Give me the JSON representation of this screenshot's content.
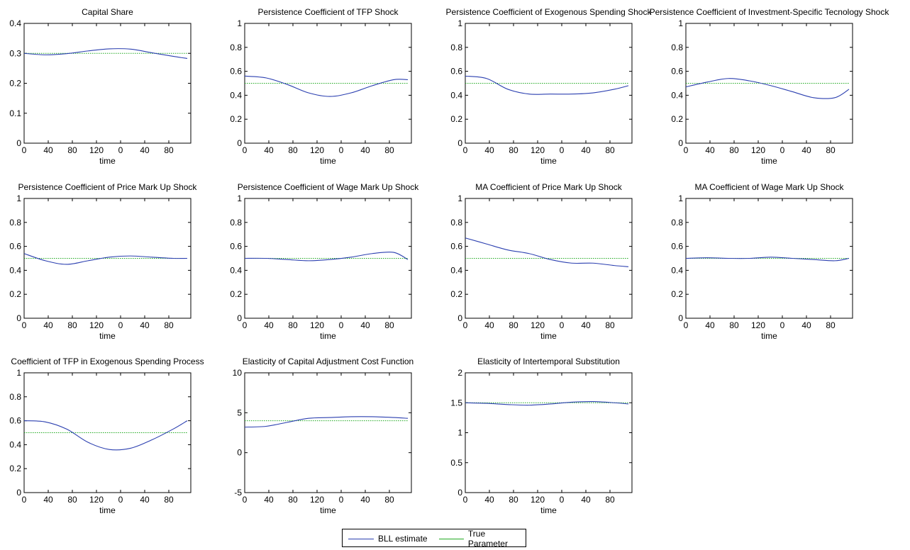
{
  "figure": {
    "legend": [
      {
        "label": "BLL estimate",
        "color": "#2b3fb0"
      },
      {
        "label": "True Parameter",
        "color": "#22aa22"
      }
    ]
  },
  "chart_data": [
    {
      "type": "line",
      "title": "Capital Share",
      "xlabel": "time",
      "ylim": [
        0,
        0.4
      ],
      "yticks": [
        "0",
        "0.1",
        "0.2",
        "0.3",
        "0.4"
      ],
      "xticks": [
        "0",
        "40",
        "80",
        "120",
        "0",
        "40",
        "80"
      ],
      "grid": false,
      "true_value": 0.3,
      "series": [
        {
          "name": "BLL estimate",
          "x": [
            0,
            30,
            60,
            90,
            120,
            150,
            180,
            210,
            230
          ],
          "values": [
            0.3,
            0.295,
            0.299,
            0.308,
            0.315,
            0.314,
            0.302,
            0.29,
            0.283
          ]
        },
        {
          "name": "True Parameter",
          "x": [
            0,
            230
          ],
          "values": [
            0.3,
            0.3
          ]
        }
      ]
    },
    {
      "type": "line",
      "title": "Persistence Coefficient of TFP Shock",
      "xlabel": "time",
      "ylim": [
        0,
        1
      ],
      "yticks": [
        "0",
        "0.2",
        "0.4",
        "0.6",
        "0.8",
        "1"
      ],
      "xticks": [
        "0",
        "40",
        "80",
        "120",
        "0",
        "40",
        "80"
      ],
      "grid": false,
      "true_value": 0.5,
      "series": [
        {
          "name": "BLL estimate",
          "x": [
            0,
            30,
            60,
            90,
            120,
            150,
            180,
            210,
            230
          ],
          "values": [
            0.56,
            0.545,
            0.49,
            0.42,
            0.39,
            0.42,
            0.48,
            0.53,
            0.53
          ]
        },
        {
          "name": "True Parameter",
          "x": [
            0,
            230
          ],
          "values": [
            0.5,
            0.5
          ]
        }
      ]
    },
    {
      "type": "line",
      "title": "Persistence Coefficient of Exogenous Spending Shock",
      "xlabel": "time",
      "ylim": [
        0,
        1
      ],
      "yticks": [
        "0",
        "0.2",
        "0.4",
        "0.6",
        "0.8",
        "1"
      ],
      "xticks": [
        "0",
        "40",
        "80",
        "120",
        "0",
        "40",
        "80"
      ],
      "grid": false,
      "true_value": 0.5,
      "series": [
        {
          "name": "BLL estimate",
          "x": [
            0,
            30,
            60,
            90,
            120,
            150,
            180,
            210,
            230
          ],
          "values": [
            0.56,
            0.54,
            0.45,
            0.41,
            0.41,
            0.41,
            0.42,
            0.45,
            0.48
          ]
        },
        {
          "name": "True Parameter",
          "x": [
            0,
            230
          ],
          "values": [
            0.5,
            0.5
          ]
        }
      ]
    },
    {
      "type": "line",
      "title": "Persistence Coefficient of Investment-Specific Tecnology Shock",
      "xlabel": "time",
      "ylim": [
        0,
        1
      ],
      "yticks": [
        "0",
        "0.2",
        "0.4",
        "0.6",
        "0.8",
        "1"
      ],
      "xticks": [
        "0",
        "40",
        "80",
        "120",
        "0",
        "40",
        "80"
      ],
      "grid": false,
      "true_value": 0.5,
      "series": [
        {
          "name": "BLL estimate",
          "x": [
            0,
            30,
            60,
            90,
            120,
            150,
            180,
            210,
            230
          ],
          "values": [
            0.47,
            0.51,
            0.54,
            0.52,
            0.48,
            0.43,
            0.38,
            0.38,
            0.45
          ]
        },
        {
          "name": "True Parameter",
          "x": [
            0,
            230
          ],
          "values": [
            0.5,
            0.5
          ]
        }
      ]
    },
    {
      "type": "line",
      "title": "Persistence Coefficient of Price Mark Up Shock",
      "xlabel": "time",
      "ylim": [
        0,
        1
      ],
      "yticks": [
        "0",
        "0.2",
        "0.4",
        "0.6",
        "0.8",
        "1"
      ],
      "xticks": [
        "0",
        "40",
        "80",
        "120",
        "0",
        "40",
        "80"
      ],
      "grid": false,
      "true_value": 0.5,
      "series": [
        {
          "name": "BLL estimate",
          "x": [
            0,
            30,
            60,
            90,
            120,
            150,
            180,
            210,
            230
          ],
          "values": [
            0.54,
            0.48,
            0.45,
            0.48,
            0.51,
            0.52,
            0.51,
            0.5,
            0.5
          ]
        },
        {
          "name": "True Parameter",
          "x": [
            0,
            230
          ],
          "values": [
            0.5,
            0.5
          ]
        }
      ]
    },
    {
      "type": "line",
      "title": "Persistence Coefficient of Wage Mark Up Shock",
      "xlabel": "time",
      "ylim": [
        0,
        1
      ],
      "yticks": [
        "0",
        "0.2",
        "0.4",
        "0.6",
        "0.8",
        "1"
      ],
      "xticks": [
        "0",
        "40",
        "80",
        "120",
        "0",
        "40",
        "80"
      ],
      "grid": false,
      "true_value": 0.5,
      "series": [
        {
          "name": "BLL estimate",
          "x": [
            0,
            30,
            60,
            90,
            120,
            150,
            180,
            210,
            230
          ],
          "values": [
            0.5,
            0.5,
            0.49,
            0.48,
            0.49,
            0.51,
            0.54,
            0.55,
            0.49
          ]
        },
        {
          "name": "True Parameter",
          "x": [
            0,
            230
          ],
          "values": [
            0.5,
            0.5
          ]
        }
      ]
    },
    {
      "type": "line",
      "title": "MA Coefficient of Price Mark Up Shock",
      "xlabel": "time",
      "ylim": [
        0,
        1
      ],
      "yticks": [
        "0",
        "0.2",
        "0.4",
        "0.6",
        "0.8",
        "1"
      ],
      "xticks": [
        "0",
        "40",
        "80",
        "120",
        "0",
        "40",
        "80"
      ],
      "grid": false,
      "true_value": 0.5,
      "series": [
        {
          "name": "BLL estimate",
          "x": [
            0,
            30,
            60,
            90,
            120,
            150,
            180,
            210,
            230
          ],
          "values": [
            0.67,
            0.62,
            0.57,
            0.54,
            0.49,
            0.46,
            0.46,
            0.44,
            0.43
          ]
        },
        {
          "name": "True Parameter",
          "x": [
            0,
            230
          ],
          "values": [
            0.5,
            0.5
          ]
        }
      ]
    },
    {
      "type": "line",
      "title": "MA Coefficient of Wage Mark Up Shock",
      "xlabel": "time",
      "ylim": [
        0,
        1
      ],
      "yticks": [
        "0",
        "0.2",
        "0.4",
        "0.6",
        "0.8",
        "1"
      ],
      "xticks": [
        "0",
        "40",
        "80",
        "120",
        "0",
        "40",
        "80"
      ],
      "grid": false,
      "true_value": 0.5,
      "series": [
        {
          "name": "BLL estimate",
          "x": [
            0,
            30,
            60,
            90,
            120,
            150,
            180,
            210,
            230
          ],
          "values": [
            0.5,
            0.505,
            0.5,
            0.5,
            0.51,
            0.5,
            0.49,
            0.48,
            0.5
          ]
        },
        {
          "name": "True Parameter",
          "x": [
            0,
            230
          ],
          "values": [
            0.5,
            0.5
          ]
        }
      ]
    },
    {
      "type": "line",
      "title": "Coefficient of TFP in Exogenous Spending Process",
      "xlabel": "time",
      "ylim": [
        0,
        1
      ],
      "yticks": [
        "0",
        "0.2",
        "0.4",
        "0.6",
        "0.8",
        "1"
      ],
      "xticks": [
        "0",
        "40",
        "80",
        "120",
        "0",
        "40",
        "80"
      ],
      "grid": false,
      "true_value": 0.5,
      "series": [
        {
          "name": "BLL estimate",
          "x": [
            0,
            30,
            60,
            90,
            120,
            150,
            180,
            210,
            230
          ],
          "values": [
            0.6,
            0.59,
            0.53,
            0.42,
            0.36,
            0.37,
            0.44,
            0.53,
            0.6
          ]
        },
        {
          "name": "True Parameter",
          "x": [
            0,
            230
          ],
          "values": [
            0.5,
            0.5
          ]
        }
      ]
    },
    {
      "type": "line",
      "title": "Elasticity of Capital Adjustment Cost Function",
      "xlabel": "time",
      "ylim": [
        -5,
        10
      ],
      "yticks": [
        "-5",
        "0",
        "5",
        "10"
      ],
      "xticks": [
        "0",
        "40",
        "80",
        "120",
        "0",
        "40",
        "80"
      ],
      "grid": false,
      "true_value": 4,
      "series": [
        {
          "name": "BLL estimate",
          "x": [
            0,
            30,
            60,
            90,
            120,
            150,
            180,
            210,
            230
          ],
          "values": [
            3.2,
            3.3,
            3.8,
            4.3,
            4.4,
            4.5,
            4.5,
            4.4,
            4.3
          ]
        },
        {
          "name": "True Parameter",
          "x": [
            0,
            230
          ],
          "values": [
            4,
            4
          ]
        }
      ]
    },
    {
      "type": "line",
      "title": "Elasticity of Intertemporal Substitution",
      "xlabel": "time",
      "ylim": [
        0,
        2
      ],
      "yticks": [
        "0",
        "0.5",
        "1",
        "1.5",
        "2"
      ],
      "xticks": [
        "0",
        "40",
        "80",
        "120",
        "0",
        "40",
        "80"
      ],
      "grid": false,
      "true_value": 1.5,
      "series": [
        {
          "name": "BLL estimate",
          "x": [
            0,
            30,
            60,
            90,
            120,
            150,
            180,
            210,
            230
          ],
          "values": [
            1.5,
            1.49,
            1.47,
            1.46,
            1.48,
            1.51,
            1.52,
            1.5,
            1.48
          ]
        },
        {
          "name": "True Parameter",
          "x": [
            0,
            230
          ],
          "values": [
            1.5,
            1.5
          ]
        }
      ]
    }
  ]
}
